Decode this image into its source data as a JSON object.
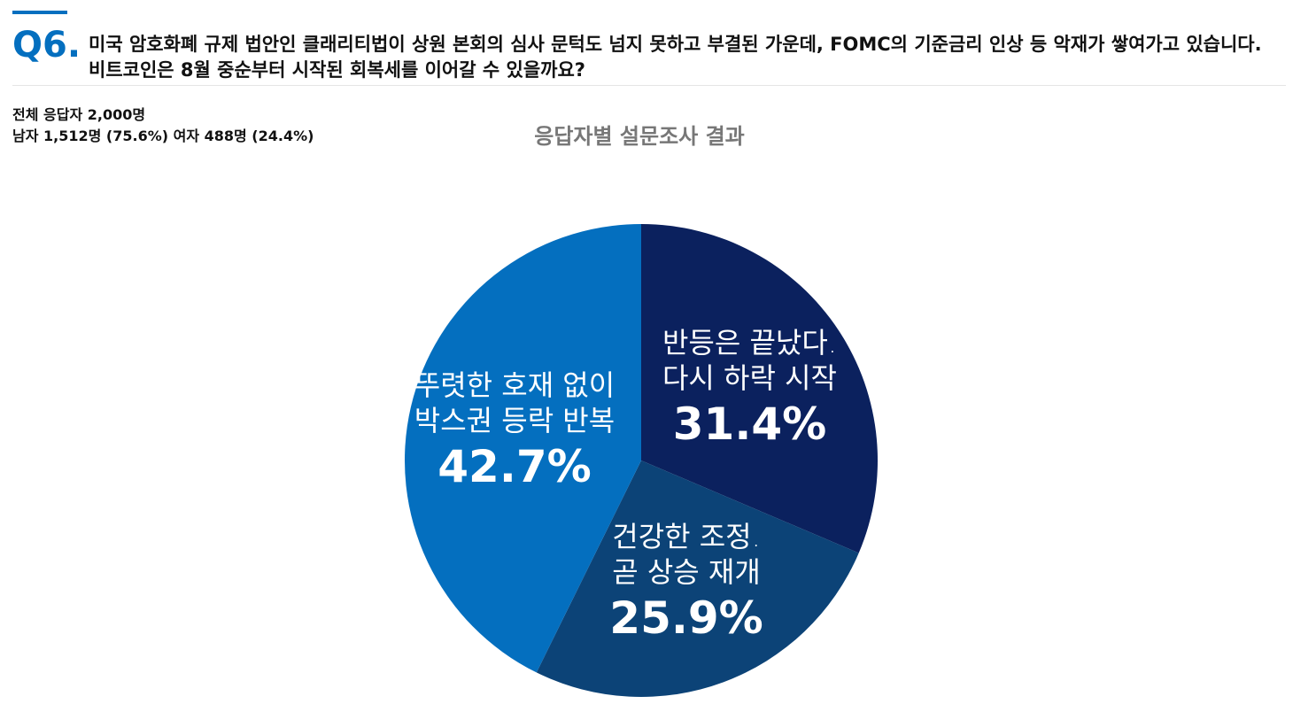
{
  "header": {
    "number": "Q6.",
    "question": "미국 암호화폐 규제 법안인 클래리티법이 상원 본회의 심사 문턱도 넘지 못하고 부결된 가운데, FOMC의 기준금리 인상 등 악재가 쌓여가고 있습니다. 비트코인은 8월 중순부터 시작된 회복세를 이어갈 수 있을까요?"
  },
  "respondents": {
    "total": "전체 응답자 2,000명",
    "gender": "남자 1,512명 (75.6%) 여자 488명 (24.4%)"
  },
  "chart_data": {
    "type": "pie",
    "title": "응답자별 설문조사 결과",
    "categories": [
      "반등은 끝났다.\n다시 하락 시작",
      "건강한 조정.\n곧 상승 재개",
      "뚜렷한 호재 없이\n박스권 등락 반복"
    ],
    "values": [
      31.4,
      25.9,
      42.7
    ],
    "value_labels": [
      "31.4%",
      "25.9%",
      "42.7%"
    ],
    "colors": [
      "#0b215e",
      "#0c4377",
      "#046fbf"
    ]
  }
}
